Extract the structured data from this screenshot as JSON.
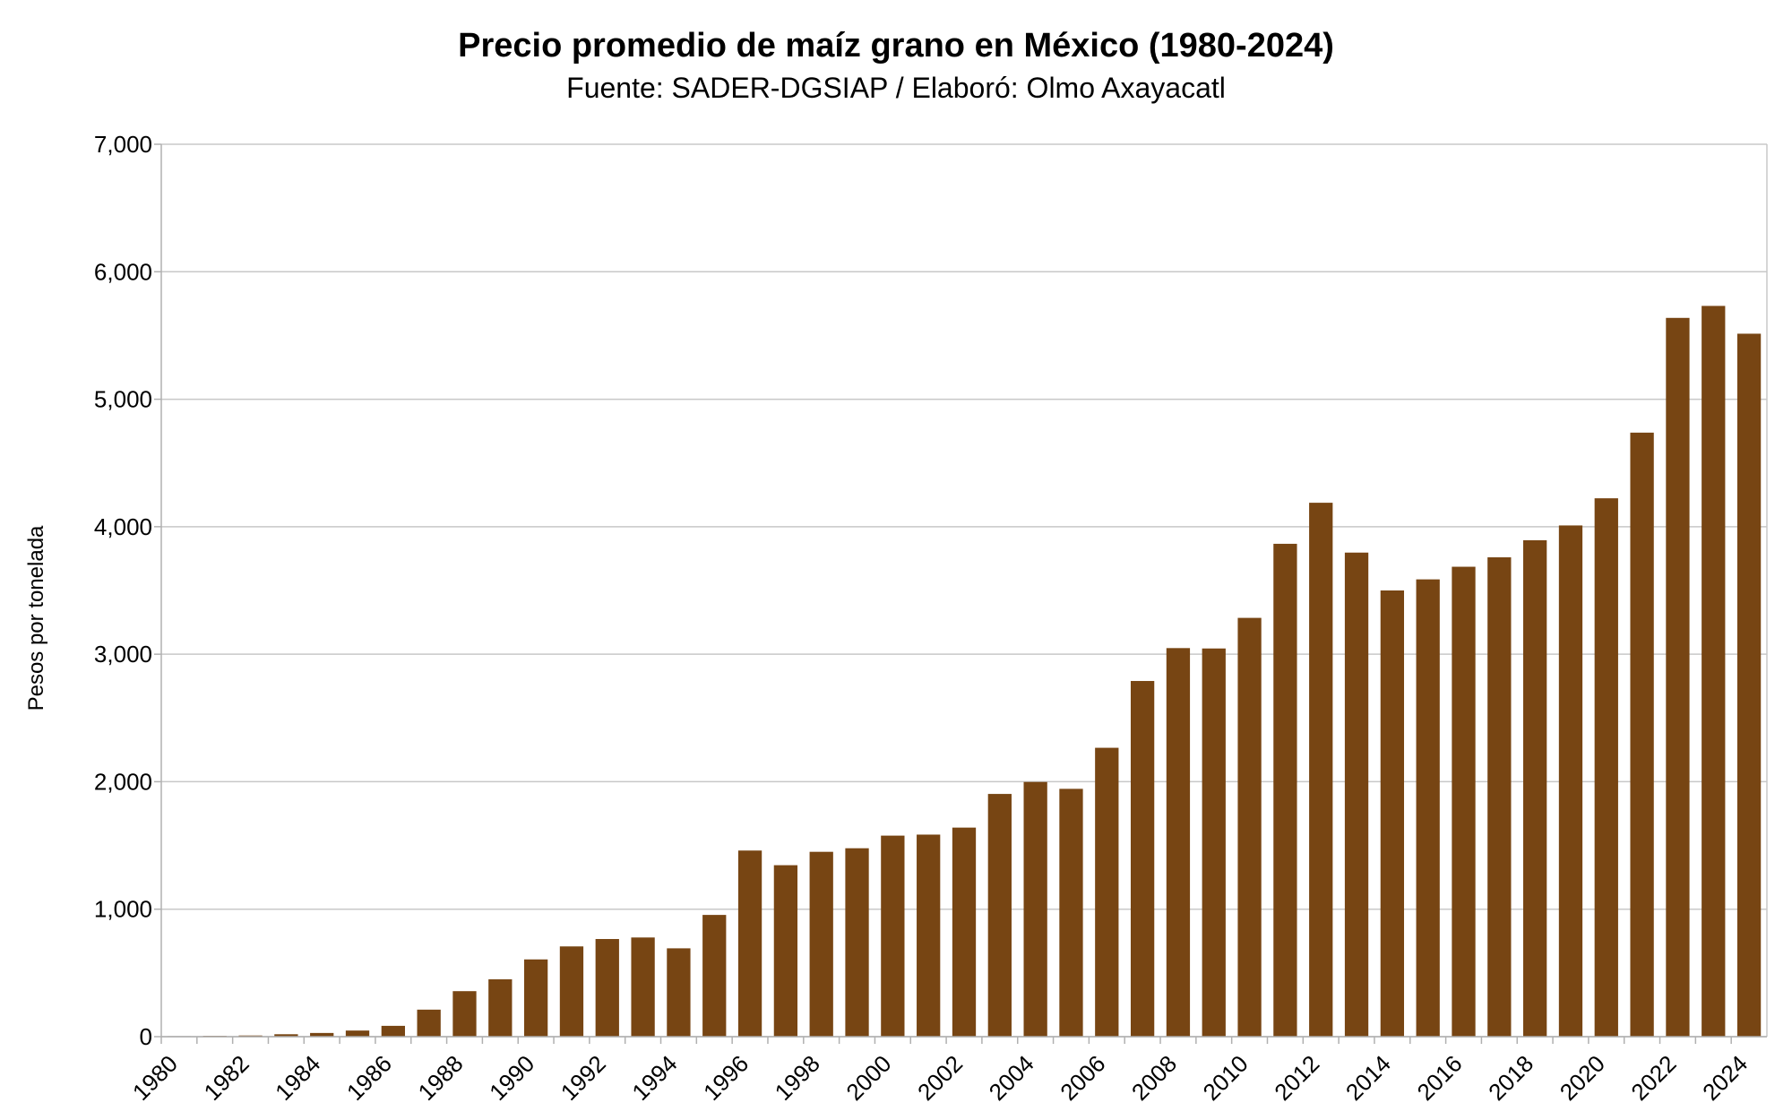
{
  "chart_data": {
    "type": "bar",
    "title": "Precio promedio de maíz grano en México (1980-2024)",
    "subtitle": "Fuente: SADER-DGSIAP / Elaboró: Olmo Axayacatl",
    "xlabel": "",
    "ylabel": "Pesos por tonelada",
    "ylim": [
      0,
      7000
    ],
    "yticks": [
      "0",
      "1,000",
      "2,000",
      "3,000",
      "4,000",
      "5,000",
      "6,000",
      "7,000"
    ],
    "ytick_values": [
      0,
      1000,
      2000,
      3000,
      4000,
      5000,
      6000,
      7000
    ],
    "grid": true,
    "bar_color": "#774513",
    "categories": [
      "1980",
      "1981",
      "1982",
      "1983",
      "1984",
      "1985",
      "1986",
      "1987",
      "1988",
      "1989",
      "1990",
      "1991",
      "1992",
      "1993",
      "1994",
      "1995",
      "1996",
      "1997",
      "1998",
      "1999",
      "2000",
      "2001",
      "2002",
      "2003",
      "2004",
      "2005",
      "2006",
      "2007",
      "2008",
      "2009",
      "2010",
      "2011",
      "2012",
      "2013",
      "2014",
      "2015",
      "2016",
      "2017",
      "2018",
      "2019",
      "2020",
      "2021",
      "2022",
      "2023",
      "2024"
    ],
    "tick_labels": [
      "1980",
      "1982",
      "1984",
      "1986",
      "1988",
      "1990",
      "1992",
      "1994",
      "1996",
      "1998",
      "2000",
      "2002",
      "2004",
      "2006",
      "2008",
      "2010",
      "2012",
      "2014",
      "2016",
      "2018",
      "2020",
      "2022",
      "2024"
    ],
    "values": [
      4,
      6,
      9,
      19,
      29,
      48,
      85,
      212,
      357,
      450,
      606,
      708,
      766,
      778,
      693,
      955,
      1460,
      1345,
      1450,
      1478,
      1577,
      1585,
      1640,
      1904,
      1998,
      1944,
      2266,
      2790,
      3048,
      3045,
      3285,
      3866,
      4188,
      3797,
      3500,
      3587,
      3686,
      3760,
      3894,
      4010,
      4223,
      4738,
      5638,
      5732,
      5514
    ]
  }
}
